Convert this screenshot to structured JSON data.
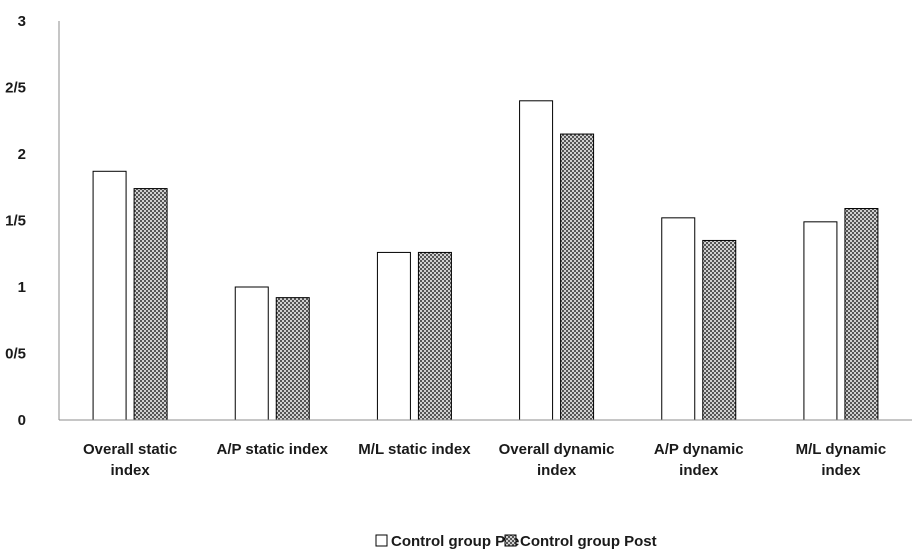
{
  "chart_data": {
    "type": "bar",
    "categories": [
      [
        "Overall static",
        "index"
      ],
      [
        "A/P static index"
      ],
      [
        "M/L static index"
      ],
      [
        "Overall dynamic",
        "index"
      ],
      [
        "A/P dynamic",
        "index"
      ],
      [
        "M/L dynamic",
        "index"
      ]
    ],
    "series": [
      {
        "name": "Control group Pre",
        "values": [
          1.87,
          1.0,
          1.26,
          2.4,
          1.52,
          1.49
        ],
        "fill": "#ffffff",
        "pattern": "none"
      },
      {
        "name": "Control group Post",
        "values": [
          1.74,
          0.92,
          1.26,
          2.15,
          1.35,
          1.59
        ],
        "fill": "#7a7a7a",
        "pattern": "checker"
      }
    ],
    "y_ticks": [
      {
        "value": 0,
        "label": "0"
      },
      {
        "value": 0.5,
        "label": "0/5"
      },
      {
        "value": 1,
        "label": "1"
      },
      {
        "value": 1.5,
        "label": "1/5"
      },
      {
        "value": 2,
        "label": "2"
      },
      {
        "value": 2.5,
        "label": "2/5"
      },
      {
        "value": 3,
        "label": "3"
      }
    ],
    "ylim": [
      0,
      3
    ],
    "title": "",
    "xlabel": "",
    "ylabel": "",
    "grid": false,
    "legend_position": "bottom-center"
  }
}
